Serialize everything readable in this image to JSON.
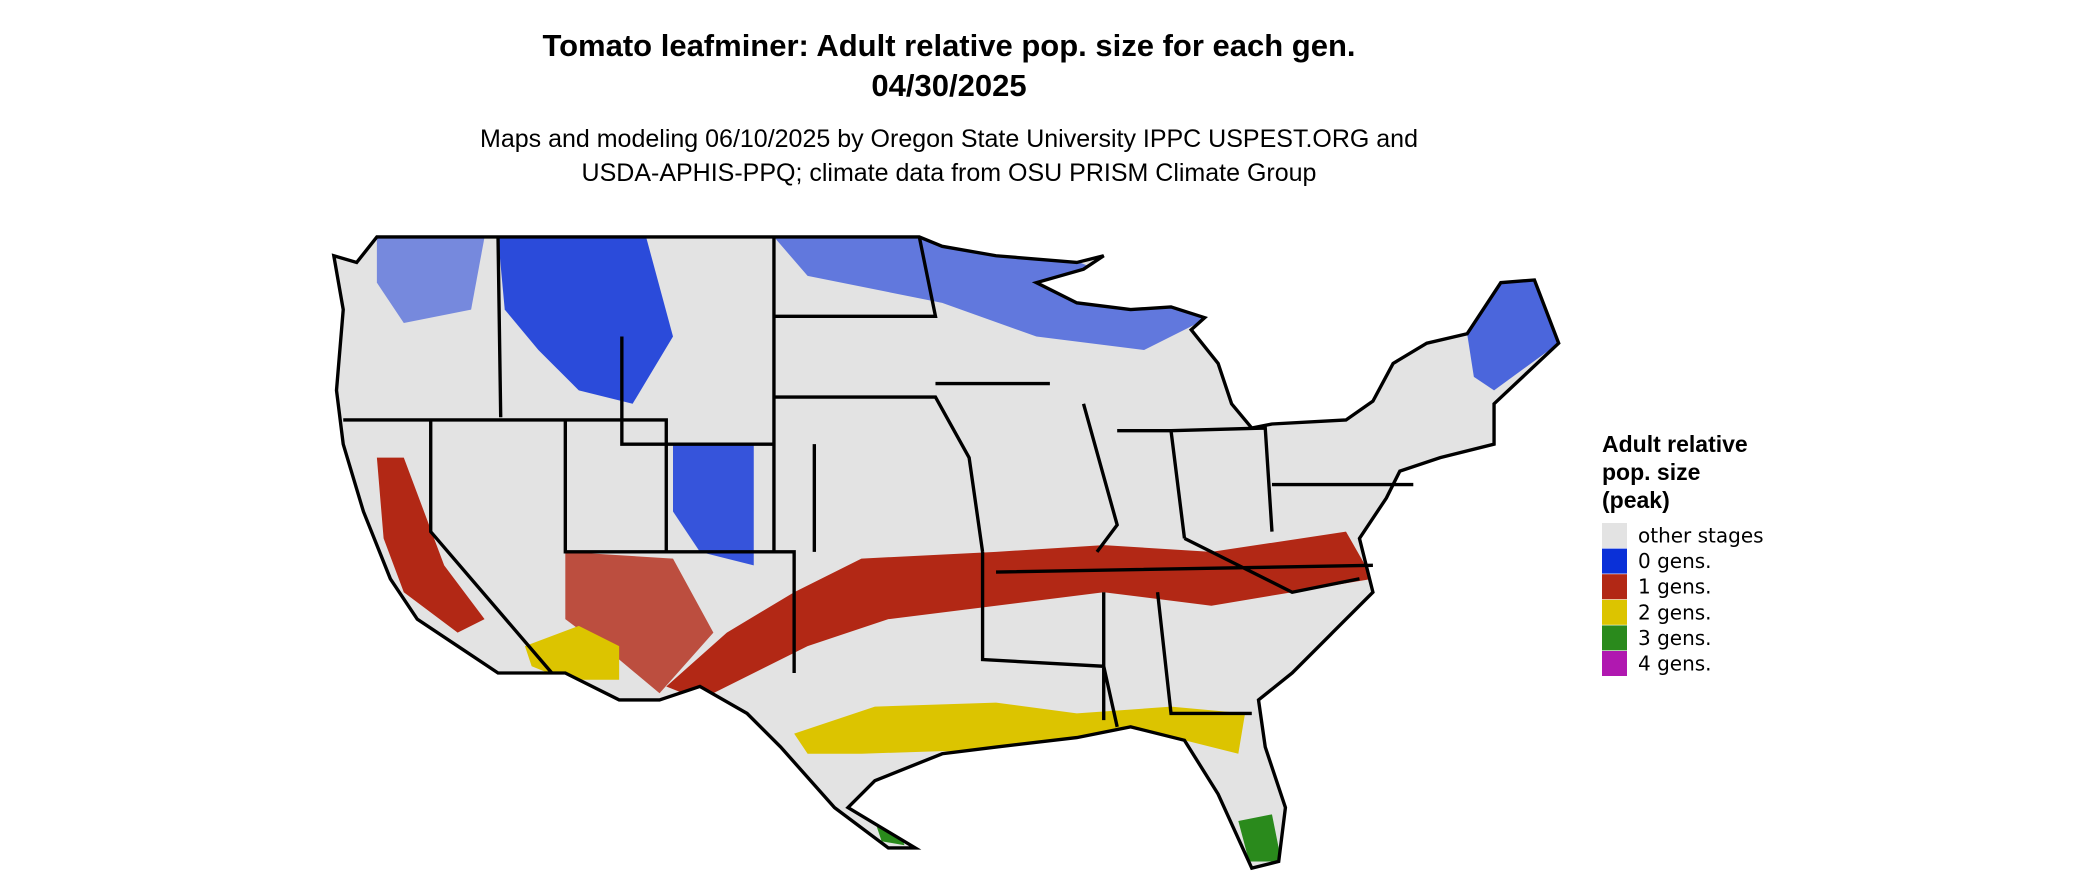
{
  "header": {
    "title": [
      "Tomato leafminer: Adult relative pop. size for each gen.",
      "04/30/2025"
    ],
    "subtitle": [
      "Maps and modeling 06/10/2025 by Oregon State University IPPC USPEST.ORG and",
      "USDA-APHIS-PPQ; climate data from OSU PRISM Climate Group"
    ]
  },
  "legend": {
    "title": [
      "Adult relative",
      "pop. size",
      "(peak)"
    ],
    "items": [
      {
        "label": "other stages",
        "color": "#e3e3e3"
      },
      {
        "label": "0 gens.",
        "color": "#0a30d8"
      },
      {
        "label": "1 gens.",
        "color": "#b22815"
      },
      {
        "label": "2 gens.",
        "color": "#dcc400"
      },
      {
        "label": "3 gens.",
        "color": "#2a8a1c"
      },
      {
        "label": "4 gens.",
        "color": "#b018b0"
      }
    ]
  }
}
